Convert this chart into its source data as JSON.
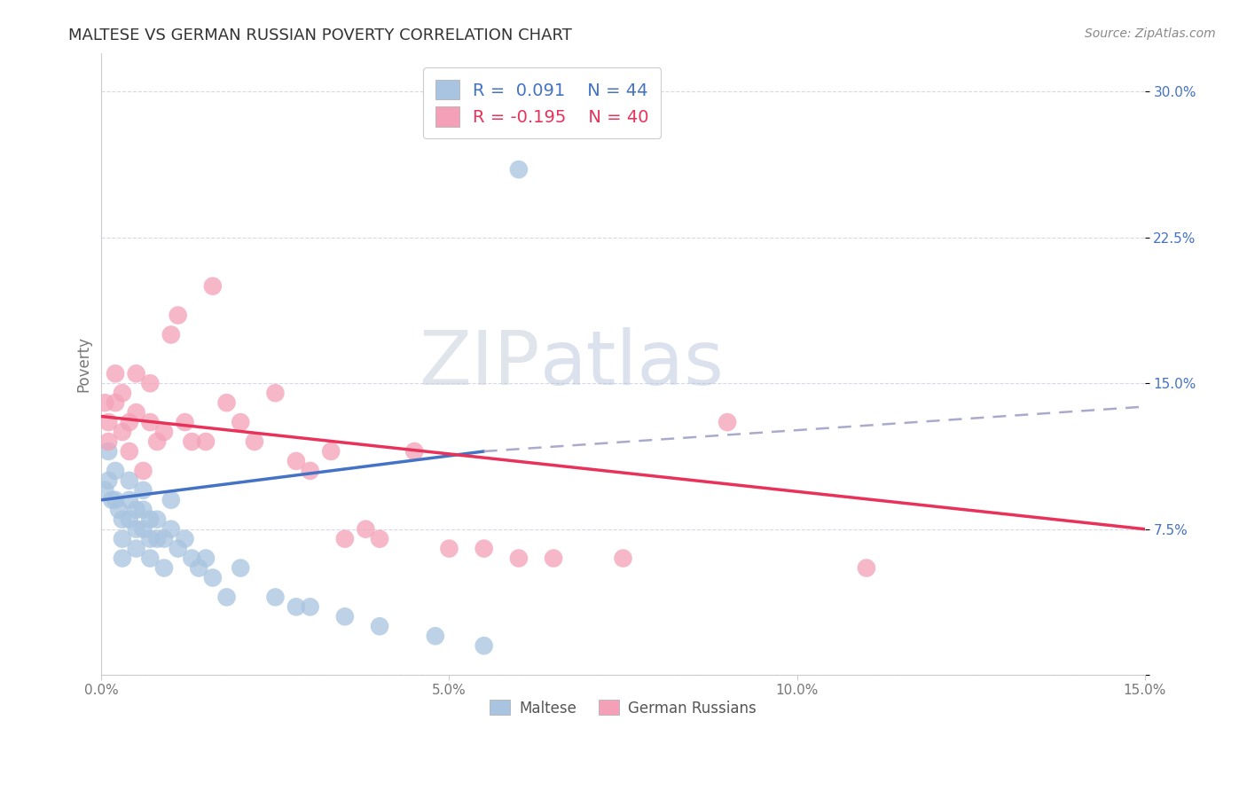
{
  "title": "MALTESE VS GERMAN RUSSIAN POVERTY CORRELATION CHART",
  "source": "Source: ZipAtlas.com",
  "ylabel": "Poverty",
  "xlim": [
    0.0,
    0.15
  ],
  "ylim": [
    0.0,
    0.32
  ],
  "xticks": [
    0.0,
    0.05,
    0.1,
    0.15
  ],
  "xticklabels": [
    "0.0%",
    "5.0%",
    "10.0%",
    "15.0%"
  ],
  "yticks": [
    0.0,
    0.075,
    0.15,
    0.225,
    0.3
  ],
  "yticklabels": [
    "",
    "7.5%",
    "15.0%",
    "22.5%",
    "30.0%"
  ],
  "maltese_R": "0.091",
  "maltese_N": "44",
  "german_russian_R": "-0.195",
  "german_russian_N": "40",
  "maltese_color": "#a8c4e0",
  "german_russian_color": "#f4a0b8",
  "maltese_line_color": "#4472c4",
  "german_russian_line_color": "#e8325a",
  "background_color": "#ffffff",
  "grid_color": "#d8d8e8",
  "watermark_zip": "ZIP",
  "watermark_atlas": "atlas",
  "maltese_x": [
    0.0005,
    0.001,
    0.001,
    0.0015,
    0.002,
    0.002,
    0.0025,
    0.003,
    0.003,
    0.003,
    0.004,
    0.004,
    0.004,
    0.005,
    0.005,
    0.005,
    0.006,
    0.006,
    0.006,
    0.007,
    0.007,
    0.007,
    0.008,
    0.008,
    0.009,
    0.009,
    0.01,
    0.01,
    0.011,
    0.012,
    0.013,
    0.014,
    0.015,
    0.016,
    0.018,
    0.02,
    0.025,
    0.028,
    0.03,
    0.035,
    0.04,
    0.048,
    0.055,
    0.06
  ],
  "maltese_y": [
    0.095,
    0.115,
    0.1,
    0.09,
    0.09,
    0.105,
    0.085,
    0.08,
    0.07,
    0.06,
    0.08,
    0.09,
    0.1,
    0.065,
    0.075,
    0.085,
    0.075,
    0.085,
    0.095,
    0.06,
    0.07,
    0.08,
    0.07,
    0.08,
    0.055,
    0.07,
    0.075,
    0.09,
    0.065,
    0.07,
    0.06,
    0.055,
    0.06,
    0.05,
    0.04,
    0.055,
    0.04,
    0.035,
    0.035,
    0.03,
    0.025,
    0.02,
    0.015,
    0.26
  ],
  "german_russian_x": [
    0.0005,
    0.001,
    0.001,
    0.002,
    0.002,
    0.003,
    0.003,
    0.004,
    0.004,
    0.005,
    0.005,
    0.006,
    0.007,
    0.007,
    0.008,
    0.009,
    0.01,
    0.011,
    0.012,
    0.013,
    0.015,
    0.016,
    0.018,
    0.02,
    0.022,
    0.025,
    0.028,
    0.03,
    0.033,
    0.035,
    0.038,
    0.04,
    0.045,
    0.05,
    0.055,
    0.06,
    0.065,
    0.075,
    0.09,
    0.11
  ],
  "german_russian_y": [
    0.14,
    0.13,
    0.12,
    0.155,
    0.14,
    0.145,
    0.125,
    0.13,
    0.115,
    0.155,
    0.135,
    0.105,
    0.15,
    0.13,
    0.12,
    0.125,
    0.175,
    0.185,
    0.13,
    0.12,
    0.12,
    0.2,
    0.14,
    0.13,
    0.12,
    0.145,
    0.11,
    0.105,
    0.115,
    0.07,
    0.075,
    0.07,
    0.115,
    0.065,
    0.065,
    0.06,
    0.06,
    0.06,
    0.13,
    0.055
  ],
  "blue_line_x0": 0.0,
  "blue_line_x1": 0.055,
  "blue_line_y0": 0.09,
  "blue_line_y1": 0.115,
  "dash_line_x0": 0.055,
  "dash_line_x1": 0.15,
  "dash_line_y0": 0.115,
  "dash_line_y1": 0.138,
  "pink_line_x0": 0.0,
  "pink_line_x1": 0.15,
  "pink_line_y0": 0.133,
  "pink_line_y1": 0.075
}
